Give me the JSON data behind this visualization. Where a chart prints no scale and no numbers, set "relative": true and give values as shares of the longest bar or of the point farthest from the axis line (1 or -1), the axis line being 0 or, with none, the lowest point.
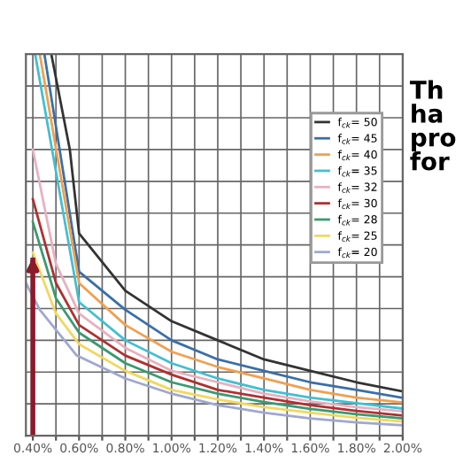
{
  "chart_data": {
    "type": "line",
    "relative": true,
    "xlim": [
      0.37,
      2.0
    ],
    "xticks": [
      {
        "value": 0.4,
        "label": "0.40%"
      },
      {
        "value": 0.5,
        "label": null
      },
      {
        "value": 0.6,
        "label": "0.60%"
      },
      {
        "value": 0.7,
        "label": null
      },
      {
        "value": 0.8,
        "label": "0.80%"
      },
      {
        "value": 0.9,
        "label": null
      },
      {
        "value": 1.0,
        "label": "1.00%"
      },
      {
        "value": 1.1,
        "label": null
      },
      {
        "value": 1.2,
        "label": "1.20%"
      },
      {
        "value": 1.3,
        "label": null
      },
      {
        "value": 1.4,
        "label": "1.40%"
      },
      {
        "value": 1.5,
        "label": null
      },
      {
        "value": 1.6,
        "label": "1.60%"
      },
      {
        "value": 1.7,
        "label": null
      },
      {
        "value": 1.8,
        "label": "1.80%"
      },
      {
        "value": 1.9,
        "label": null
      },
      {
        "value": 2.0,
        "label": "2.00%"
      }
    ],
    "grid": true,
    "legend": "top right",
    "marker": "none",
    "line_style": "solid",
    "series": [
      {
        "name": "f$_{ck}$= 50",
        "color": "#333333",
        "x": [
          0.48,
          0.56,
          0.6,
          0.8,
          1.0,
          1.2,
          1.4,
          1.6,
          1.8,
          2.0
        ],
        "values": [
          1.0,
          0.75,
          0.53,
          0.38,
          0.3,
          0.25,
          0.2,
          0.17,
          0.14,
          0.116
        ]
      },
      {
        "name": "f$_{ck}$= 45",
        "color": "#3a6fa8",
        "x": [
          0.45,
          0.6,
          0.8,
          1.0,
          1.2,
          1.4,
          1.6,
          1.8,
          2.0
        ],
        "values": [
          1.0,
          0.43,
          0.33,
          0.25,
          0.2,
          0.17,
          0.14,
          0.12,
          0.099
        ]
      },
      {
        "name": "f$_{ck}$= 40",
        "color": "#f0a050",
        "x": [
          0.43,
          0.6,
          0.8,
          1.0,
          1.2,
          1.4,
          1.6,
          1.8,
          2.0
        ],
        "values": [
          1.0,
          0.4,
          0.29,
          0.22,
          0.18,
          0.15,
          0.12,
          0.1,
          0.087
        ]
      },
      {
        "name": "f$_{ck}$= 35",
        "color": "#40c0d0",
        "x": [
          0.41,
          0.6,
          0.8,
          1.0,
          1.2,
          1.4,
          1.6,
          1.8,
          2.0
        ],
        "values": [
          1.0,
          0.35,
          0.25,
          0.19,
          0.15,
          0.12,
          0.1,
          0.085,
          0.071
        ]
      },
      {
        "name": "f$_{ck}$= 32",
        "color": "#e8b0c0",
        "x": [
          0.4,
          0.5,
          0.6,
          0.8,
          1.0,
          1.2,
          1.4,
          1.6,
          1.8,
          2.0
        ],
        "values": [
          0.75,
          0.45,
          0.32,
          0.23,
          0.17,
          0.14,
          0.11,
          0.09,
          0.075,
          0.064
        ]
      },
      {
        "name": "f$_{ck}$= 30",
        "color": "#b03030",
        "x": [
          0.4,
          0.5,
          0.6,
          0.8,
          1.0,
          1.2,
          1.4,
          1.6,
          1.8,
          2.0
        ],
        "values": [
          0.62,
          0.4,
          0.29,
          0.21,
          0.16,
          0.12,
          0.1,
          0.08,
          0.065,
          0.053
        ]
      },
      {
        "name": "f$_{ck}$= 28",
        "color": "#3a9a70",
        "x": [
          0.4,
          0.5,
          0.6,
          0.8,
          1.0,
          1.2,
          1.4,
          1.6,
          1.8,
          2.0
        ],
        "values": [
          0.56,
          0.36,
          0.27,
          0.19,
          0.14,
          0.11,
          0.088,
          0.07,
          0.056,
          0.045
        ]
      },
      {
        "name": "f$_{ck}$= 25",
        "color": "#f0d860",
        "x": [
          0.4,
          0.5,
          0.6,
          0.8,
          1.0,
          1.2,
          1.4,
          1.6,
          1.8,
          2.0
        ],
        "values": [
          0.48,
          0.32,
          0.24,
          0.17,
          0.12,
          0.095,
          0.075,
          0.06,
          0.047,
          0.037
        ]
      },
      {
        "name": "f$_{ck}$= 20",
        "color": "#a0a8d0",
        "x": [
          0.37,
          0.43,
          0.59,
          0.8,
          1.0,
          1.2,
          1.4,
          1.6,
          1.8,
          2.0
        ],
        "values": [
          0.4,
          0.33,
          0.21,
          0.15,
          0.11,
          0.08,
          0.06,
          0.045,
          0.035,
          0.027
        ]
      }
    ],
    "ref_lines": [
      {
        "axis": "x",
        "value": 0.4,
        "color": "#8b1a2b"
      }
    ],
    "annotations": [
      "Th\nha\npro\nfor"
    ]
  }
}
